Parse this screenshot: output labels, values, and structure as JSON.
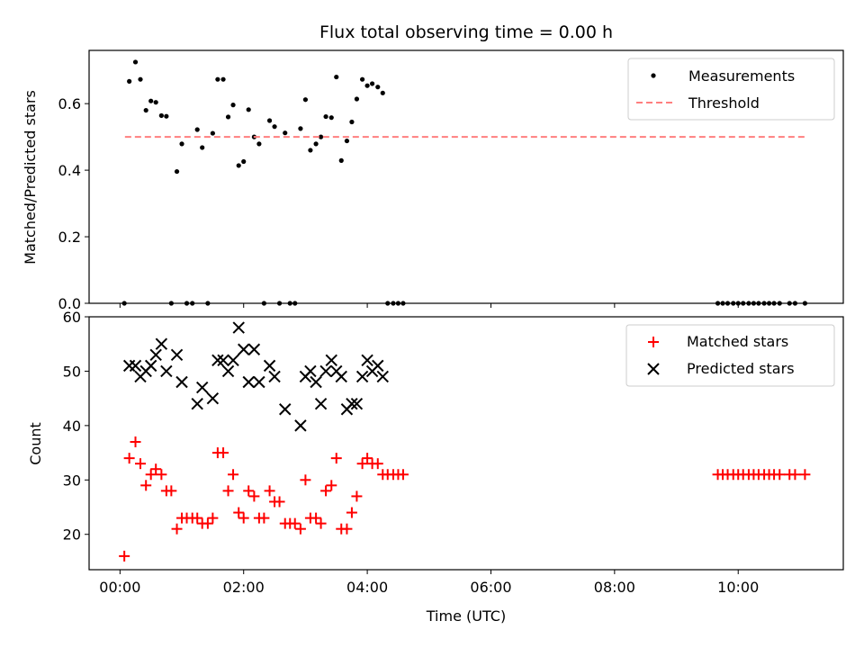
{
  "chart_data": [
    {
      "type": "scatter",
      "title": "Flux total observing time = 0.00 h",
      "xlabel": "",
      "ylabel": "Matched/Predicted stars",
      "xlim": [
        -0.5,
        11.7
      ],
      "ylim": [
        0.0,
        0.76
      ],
      "yticks": [
        0.0,
        0.2,
        0.4,
        0.6
      ],
      "ytick_labels": [
        "0.0",
        "0.2",
        "0.4",
        "0.6"
      ],
      "xticks": [
        0,
        2,
        4,
        6,
        8,
        10
      ],
      "legend_position": "top-right",
      "series": [
        {
          "name": "Measurements",
          "marker": "dot",
          "color": "#000000",
          "points": [
            [
              0.07,
              0.0
            ],
            [
              0.15,
              0.667
            ],
            [
              0.25,
              0.725
            ],
            [
              0.33,
              0.673
            ],
            [
              0.42,
              0.58
            ],
            [
              0.5,
              0.608
            ],
            [
              0.58,
              0.604
            ],
            [
              0.67,
              0.564
            ],
            [
              0.75,
              0.562
            ],
            [
              0.83,
              0.0
            ],
            [
              0.92,
              0.396
            ],
            [
              1.0,
              0.479
            ],
            [
              1.08,
              0.0
            ],
            [
              1.17,
              0.0
            ],
            [
              1.25,
              0.522
            ],
            [
              1.33,
              0.468
            ],
            [
              1.42,
              0.0
            ],
            [
              1.5,
              0.511
            ],
            [
              1.58,
              0.673
            ],
            [
              1.67,
              0.673
            ],
            [
              1.75,
              0.56
            ],
            [
              1.83,
              0.596
            ],
            [
              1.92,
              0.414
            ],
            [
              2.0,
              0.426
            ],
            [
              2.08,
              0.582
            ],
            [
              2.17,
              0.5
            ],
            [
              2.25,
              0.479
            ],
            [
              2.33,
              0.0
            ],
            [
              2.42,
              0.549
            ],
            [
              2.5,
              0.531
            ],
            [
              2.58,
              0.0
            ],
            [
              2.67,
              0.512
            ],
            [
              2.75,
              0.0
            ],
            [
              2.83,
              0.0
            ],
            [
              2.92,
              0.525
            ],
            [
              3.0,
              0.612
            ],
            [
              3.08,
              0.46
            ],
            [
              3.17,
              0.479
            ],
            [
              3.25,
              0.5
            ],
            [
              3.33,
              0.561
            ],
            [
              3.42,
              0.558
            ],
            [
              3.5,
              0.68
            ],
            [
              3.58,
              0.429
            ],
            [
              3.67,
              0.488
            ],
            [
              3.75,
              0.545
            ],
            [
              3.83,
              0.614
            ],
            [
              3.92,
              0.673
            ],
            [
              4.0,
              0.654
            ],
            [
              4.08,
              0.66
            ],
            [
              4.17,
              0.65
            ],
            [
              4.25,
              0.632
            ],
            [
              4.33,
              0.0
            ],
            [
              4.42,
              0.0
            ],
            [
              4.5,
              0.0
            ],
            [
              4.58,
              0.0
            ],
            [
              9.67,
              0.0
            ],
            [
              9.75,
              0.0
            ],
            [
              9.83,
              0.0
            ],
            [
              9.92,
              0.0
            ],
            [
              10.0,
              0.0
            ],
            [
              10.08,
              0.0
            ],
            [
              10.17,
              0.0
            ],
            [
              10.25,
              0.0
            ],
            [
              10.33,
              0.0
            ],
            [
              10.42,
              0.0
            ],
            [
              10.5,
              0.0
            ],
            [
              10.58,
              0.0
            ],
            [
              10.67,
              0.0
            ],
            [
              10.83,
              0.0
            ],
            [
              10.92,
              0.0
            ],
            [
              11.08,
              0.0
            ]
          ]
        },
        {
          "name": "Threshold",
          "marker": "dashed-line",
          "color": "#ff7f7f",
          "points": [
            [
              0.08,
              0.5
            ],
            [
              11.1,
              0.5
            ]
          ]
        }
      ]
    },
    {
      "type": "scatter",
      "title": "",
      "xlabel": "Time (UTC)",
      "ylabel": "Count",
      "xlim": [
        -0.5,
        11.7
      ],
      "ylim": [
        13.5,
        60.0
      ],
      "yticks": [
        20,
        30,
        40,
        50,
        60
      ],
      "ytick_labels": [
        "20",
        "30",
        "40",
        "50",
        "60"
      ],
      "xticks": [
        0,
        2,
        4,
        6,
        8,
        10
      ],
      "xtick_labels": [
        "00:00",
        "02:00",
        "04:00",
        "06:00",
        "08:00",
        "10:00"
      ],
      "legend_position": "top-right",
      "series": [
        {
          "name": "Matched stars",
          "marker": "plus",
          "color": "#ff0000",
          "points": [
            [
              0.07,
              16
            ],
            [
              0.15,
              34
            ],
            [
              0.25,
              37
            ],
            [
              0.33,
              33
            ],
            [
              0.42,
              29
            ],
            [
              0.5,
              31
            ],
            [
              0.58,
              32
            ],
            [
              0.67,
              31
            ],
            [
              0.75,
              28
            ],
            [
              0.83,
              28
            ],
            [
              0.92,
              21
            ],
            [
              1.0,
              23
            ],
            [
              1.08,
              23
            ],
            [
              1.17,
              23
            ],
            [
              1.25,
              23
            ],
            [
              1.33,
              22
            ],
            [
              1.42,
              22
            ],
            [
              1.5,
              23
            ],
            [
              1.58,
              35
            ],
            [
              1.67,
              35
            ],
            [
              1.75,
              28
            ],
            [
              1.83,
              31
            ],
            [
              1.92,
              24
            ],
            [
              2.0,
              23
            ],
            [
              2.08,
              28
            ],
            [
              2.17,
              27
            ],
            [
              2.25,
              23
            ],
            [
              2.33,
              23
            ],
            [
              2.42,
              28
            ],
            [
              2.5,
              26
            ],
            [
              2.58,
              26
            ],
            [
              2.67,
              22
            ],
            [
              2.75,
              22
            ],
            [
              2.83,
              22
            ],
            [
              2.92,
              21
            ],
            [
              3.0,
              30
            ],
            [
              3.08,
              23
            ],
            [
              3.17,
              23
            ],
            [
              3.25,
              22
            ],
            [
              3.33,
              28
            ],
            [
              3.42,
              29
            ],
            [
              3.5,
              34
            ],
            [
              3.58,
              21
            ],
            [
              3.67,
              21
            ],
            [
              3.75,
              24
            ],
            [
              3.83,
              27
            ],
            [
              3.92,
              33
            ],
            [
              4.0,
              34
            ],
            [
              4.08,
              33
            ],
            [
              4.17,
              33
            ],
            [
              4.25,
              31
            ],
            [
              4.33,
              31
            ],
            [
              4.42,
              31
            ],
            [
              4.5,
              31
            ],
            [
              4.58,
              31
            ],
            [
              9.67,
              31
            ],
            [
              9.75,
              31
            ],
            [
              9.83,
              31
            ],
            [
              9.92,
              31
            ],
            [
              10.0,
              31
            ],
            [
              10.08,
              31
            ],
            [
              10.17,
              31
            ],
            [
              10.25,
              31
            ],
            [
              10.33,
              31
            ],
            [
              10.42,
              31
            ],
            [
              10.5,
              31
            ],
            [
              10.58,
              31
            ],
            [
              10.67,
              31
            ],
            [
              10.83,
              31
            ],
            [
              10.92,
              31
            ],
            [
              11.08,
              31
            ]
          ]
        },
        {
          "name": "Predicted stars",
          "marker": "x",
          "color": "#000000",
          "points": [
            [
              0.15,
              51
            ],
            [
              0.25,
              51
            ],
            [
              0.33,
              49
            ],
            [
              0.42,
              50
            ],
            [
              0.5,
              51
            ],
            [
              0.58,
              53
            ],
            [
              0.67,
              55
            ],
            [
              0.75,
              50
            ],
            [
              0.92,
              53
            ],
            [
              1.0,
              48
            ],
            [
              1.25,
              44
            ],
            [
              1.33,
              47
            ],
            [
              1.5,
              45
            ],
            [
              1.58,
              52
            ],
            [
              1.67,
              52
            ],
            [
              1.75,
              50
            ],
            [
              1.83,
              52
            ],
            [
              1.92,
              58
            ],
            [
              2.0,
              54
            ],
            [
              2.08,
              48
            ],
            [
              2.17,
              54
            ],
            [
              2.25,
              48
            ],
            [
              2.42,
              51
            ],
            [
              2.5,
              49
            ],
            [
              2.67,
              43
            ],
            [
              2.92,
              40
            ],
            [
              3.0,
              49
            ],
            [
              3.08,
              50
            ],
            [
              3.17,
              48
            ],
            [
              3.25,
              44
            ],
            [
              3.33,
              50
            ],
            [
              3.42,
              52
            ],
            [
              3.5,
              50
            ],
            [
              3.58,
              49
            ],
            [
              3.67,
              43
            ],
            [
              3.75,
              44
            ],
            [
              3.83,
              44
            ],
            [
              3.92,
              49
            ],
            [
              4.0,
              52
            ],
            [
              4.08,
              50
            ],
            [
              4.17,
              51
            ],
            [
              4.25,
              49
            ]
          ]
        }
      ]
    }
  ]
}
